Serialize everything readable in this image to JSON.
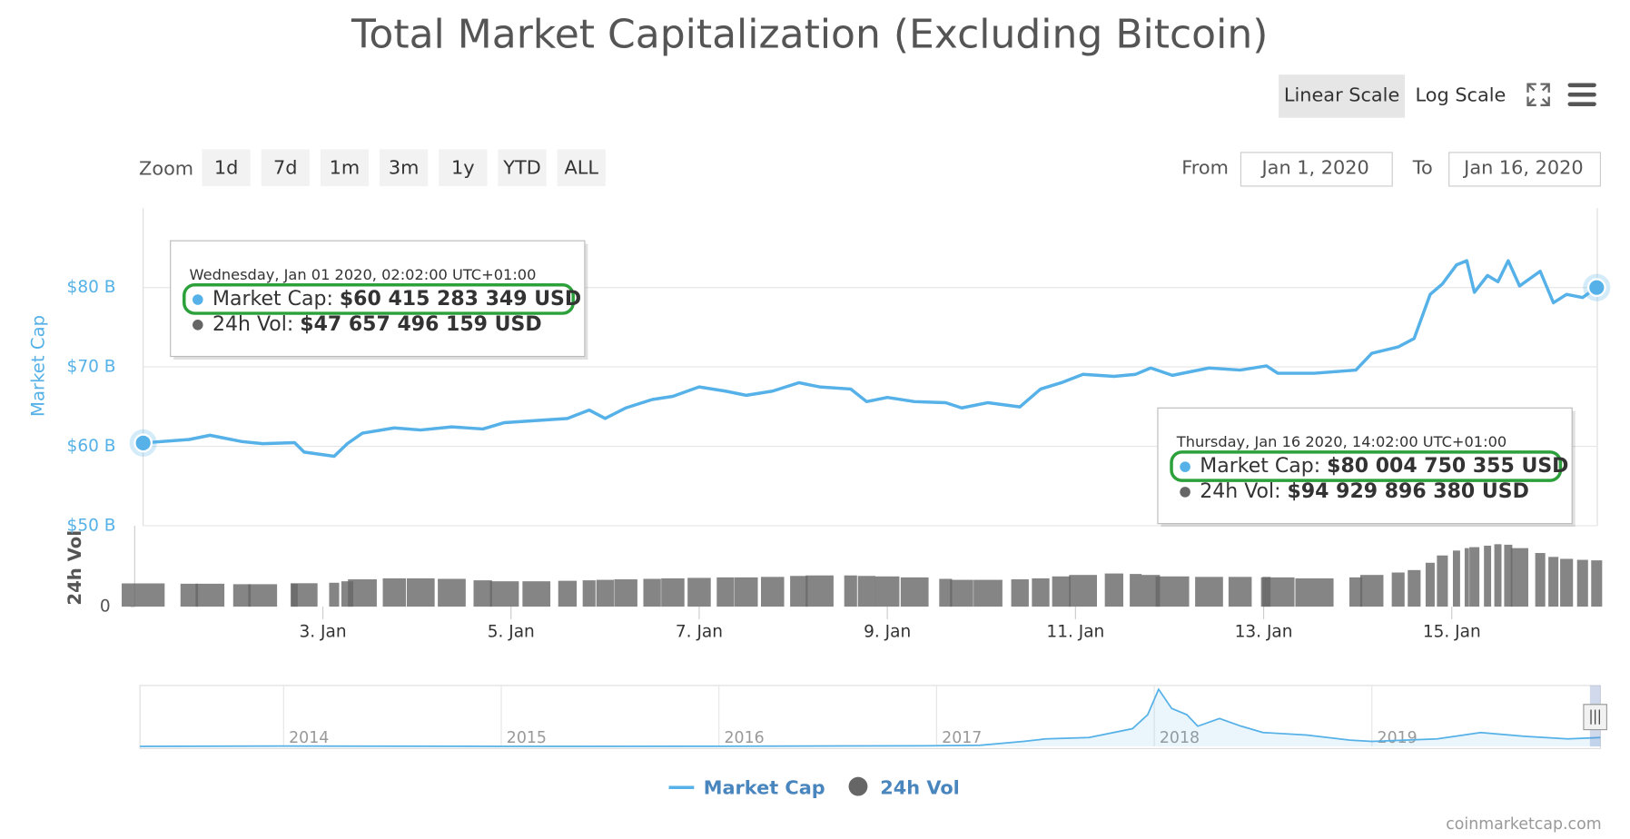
{
  "title": "Total Market Capitalization (Excluding Bitcoin)",
  "controls": {
    "scale_buttons": [
      "Linear Scale",
      "Log Scale"
    ],
    "zoom_label": "Zoom",
    "zoom_buttons": [
      "1d",
      "7d",
      "1m",
      "3m",
      "1y",
      "YTD",
      "ALL"
    ],
    "from_label": "From",
    "from_value": "Jan 1, 2020",
    "to_label": "To",
    "to_value": "Jan 16, 2020"
  },
  "chart_data": {
    "type": "line",
    "y_label": "Market Cap",
    "y2_label": "24h Vol",
    "xlim": [
      1.0,
      16.58
    ],
    "xticks": [
      {
        "value": 3,
        "label": "3. Jan"
      },
      {
        "value": 5,
        "label": "5. Jan"
      },
      {
        "value": 7,
        "label": "7. Jan"
      },
      {
        "value": 9,
        "label": "9. Jan"
      },
      {
        "value": 11,
        "label": "11. Jan"
      },
      {
        "value": 13,
        "label": "13. Jan"
      },
      {
        "value": 15,
        "label": "15. Jan"
      }
    ],
    "ylim": [
      50,
      90
    ],
    "yticks": [
      {
        "value": 50,
        "label": "$50 B"
      },
      {
        "value": 60,
        "label": "$60 B"
      },
      {
        "value": 70,
        "label": "$70 B"
      },
      {
        "value": 80,
        "label": "$80 B"
      }
    ],
    "y2lim": [
      0,
      166
    ],
    "y2ticks": [
      0
    ],
    "grid": true,
    "x": [
      1.09,
      1.58,
      1.8,
      2.14,
      2.36,
      2.7,
      2.8,
      3.12,
      3.26,
      3.42,
      3.76,
      4.04,
      4.37,
      4.7,
      4.93,
      5.27,
      5.6,
      5.83,
      6.0,
      6.22,
      6.5,
      6.72,
      7.0,
      7.28,
      7.5,
      7.78,
      8.06,
      8.28,
      8.61,
      8.78,
      9.0,
      9.29,
      9.62,
      9.79,
      10.07,
      10.41,
      10.63,
      10.85,
      11.08,
      11.41,
      11.64,
      11.8,
      12.03,
      12.42,
      12.75,
      13.03,
      13.15,
      13.54,
      13.98,
      14.15,
      14.43,
      14.6,
      14.77,
      14.9,
      15.05,
      15.16,
      15.24,
      15.38,
      15.49,
      15.6,
      15.72,
      15.94,
      16.08,
      16.22,
      16.39,
      16.54
    ],
    "series": [
      {
        "name": "Market Cap",
        "color": "#55b1e7",
        "values": [
          60.42,
          60.86,
          61.39,
          60.6,
          60.33,
          60.46,
          59.27,
          58.74,
          60.33,
          61.66,
          62.32,
          62.05,
          62.45,
          62.19,
          62.98,
          63.25,
          63.51,
          64.57,
          63.51,
          64.83,
          65.89,
          66.29,
          67.48,
          66.95,
          66.42,
          66.95,
          68.01,
          67.48,
          67.22,
          65.63,
          66.16,
          65.63,
          65.5,
          64.83,
          65.5,
          64.97,
          67.22,
          68.01,
          69.07,
          68.81,
          69.07,
          69.87,
          68.94,
          69.87,
          69.6,
          70.13,
          69.2,
          69.2,
          69.6,
          71.72,
          72.52,
          73.58,
          79.14,
          80.46,
          82.85,
          83.38,
          79.4,
          81.52,
          80.73,
          83.38,
          80.2,
          82.05,
          78.08,
          79.14,
          78.74,
          80.0
        ]
      },
      {
        "name": "24h Vol",
        "color": "#666666",
        "axis": "y2",
        "values": [
          47.66,
          47,
          47,
          46,
          46,
          47,
          48,
          49,
          52,
          56,
          58,
          58,
          57,
          54,
          52,
          52,
          53,
          54,
          55,
          56,
          57,
          58,
          59,
          60,
          60,
          61,
          63,
          64,
          64,
          63,
          62,
          60,
          57,
          55,
          55,
          56,
          58,
          62,
          65,
          68,
          67,
          65,
          62,
          61,
          61,
          61,
          60,
          58,
          60,
          65,
          70,
          75,
          90,
          105,
          115,
          120,
          122,
          125,
          128,
          127,
          120,
          110,
          102,
          98,
          96,
          94.93
        ]
      }
    ],
    "tooltips": [
      {
        "date": "Wednesday, Jan 01 2020, 02:02:00 UTC+01:00",
        "rows": [
          {
            "label": "Market Cap:",
            "value": "$60 415 283 349 USD"
          },
          {
            "label": "24h Vol:",
            "value": "$47 657 496 159 USD"
          }
        ]
      },
      {
        "date": "Thursday, Jan 16 2020, 14:02:00 UTC+01:00",
        "rows": [
          {
            "label": "Market Cap:",
            "value": "$80 004 750 355 USD"
          },
          {
            "label": "24h Vol:",
            "value": "$94 929 896 380 USD"
          }
        ]
      }
    ],
    "navigator": {
      "xlim": [
        2013.34,
        2020.05
      ],
      "xticks": [
        2014,
        2015,
        2016,
        2017,
        2018,
        2019
      ],
      "ylim": [
        0,
        480
      ],
      "x": [
        2013.34,
        2014.0,
        2015.0,
        2016.0,
        2016.6,
        2017.0,
        2017.2,
        2017.4,
        2017.5,
        2017.7,
        2017.9,
        2017.97,
        2018.02,
        2018.08,
        2018.15,
        2018.2,
        2018.3,
        2018.4,
        2018.5,
        2018.7,
        2018.9,
        2019.0,
        2019.3,
        2019.5,
        2019.7,
        2019.9,
        2020.05
      ],
      "values": [
        1,
        3,
        1,
        2,
        4,
        6,
        10,
        40,
        60,
        70,
        140,
        250,
        450,
        300,
        250,
        160,
        220,
        160,
        110,
        90,
        50,
        40,
        60,
        110,
        80,
        60,
        70
      ]
    }
  },
  "credit": "coinmarketcap.com"
}
